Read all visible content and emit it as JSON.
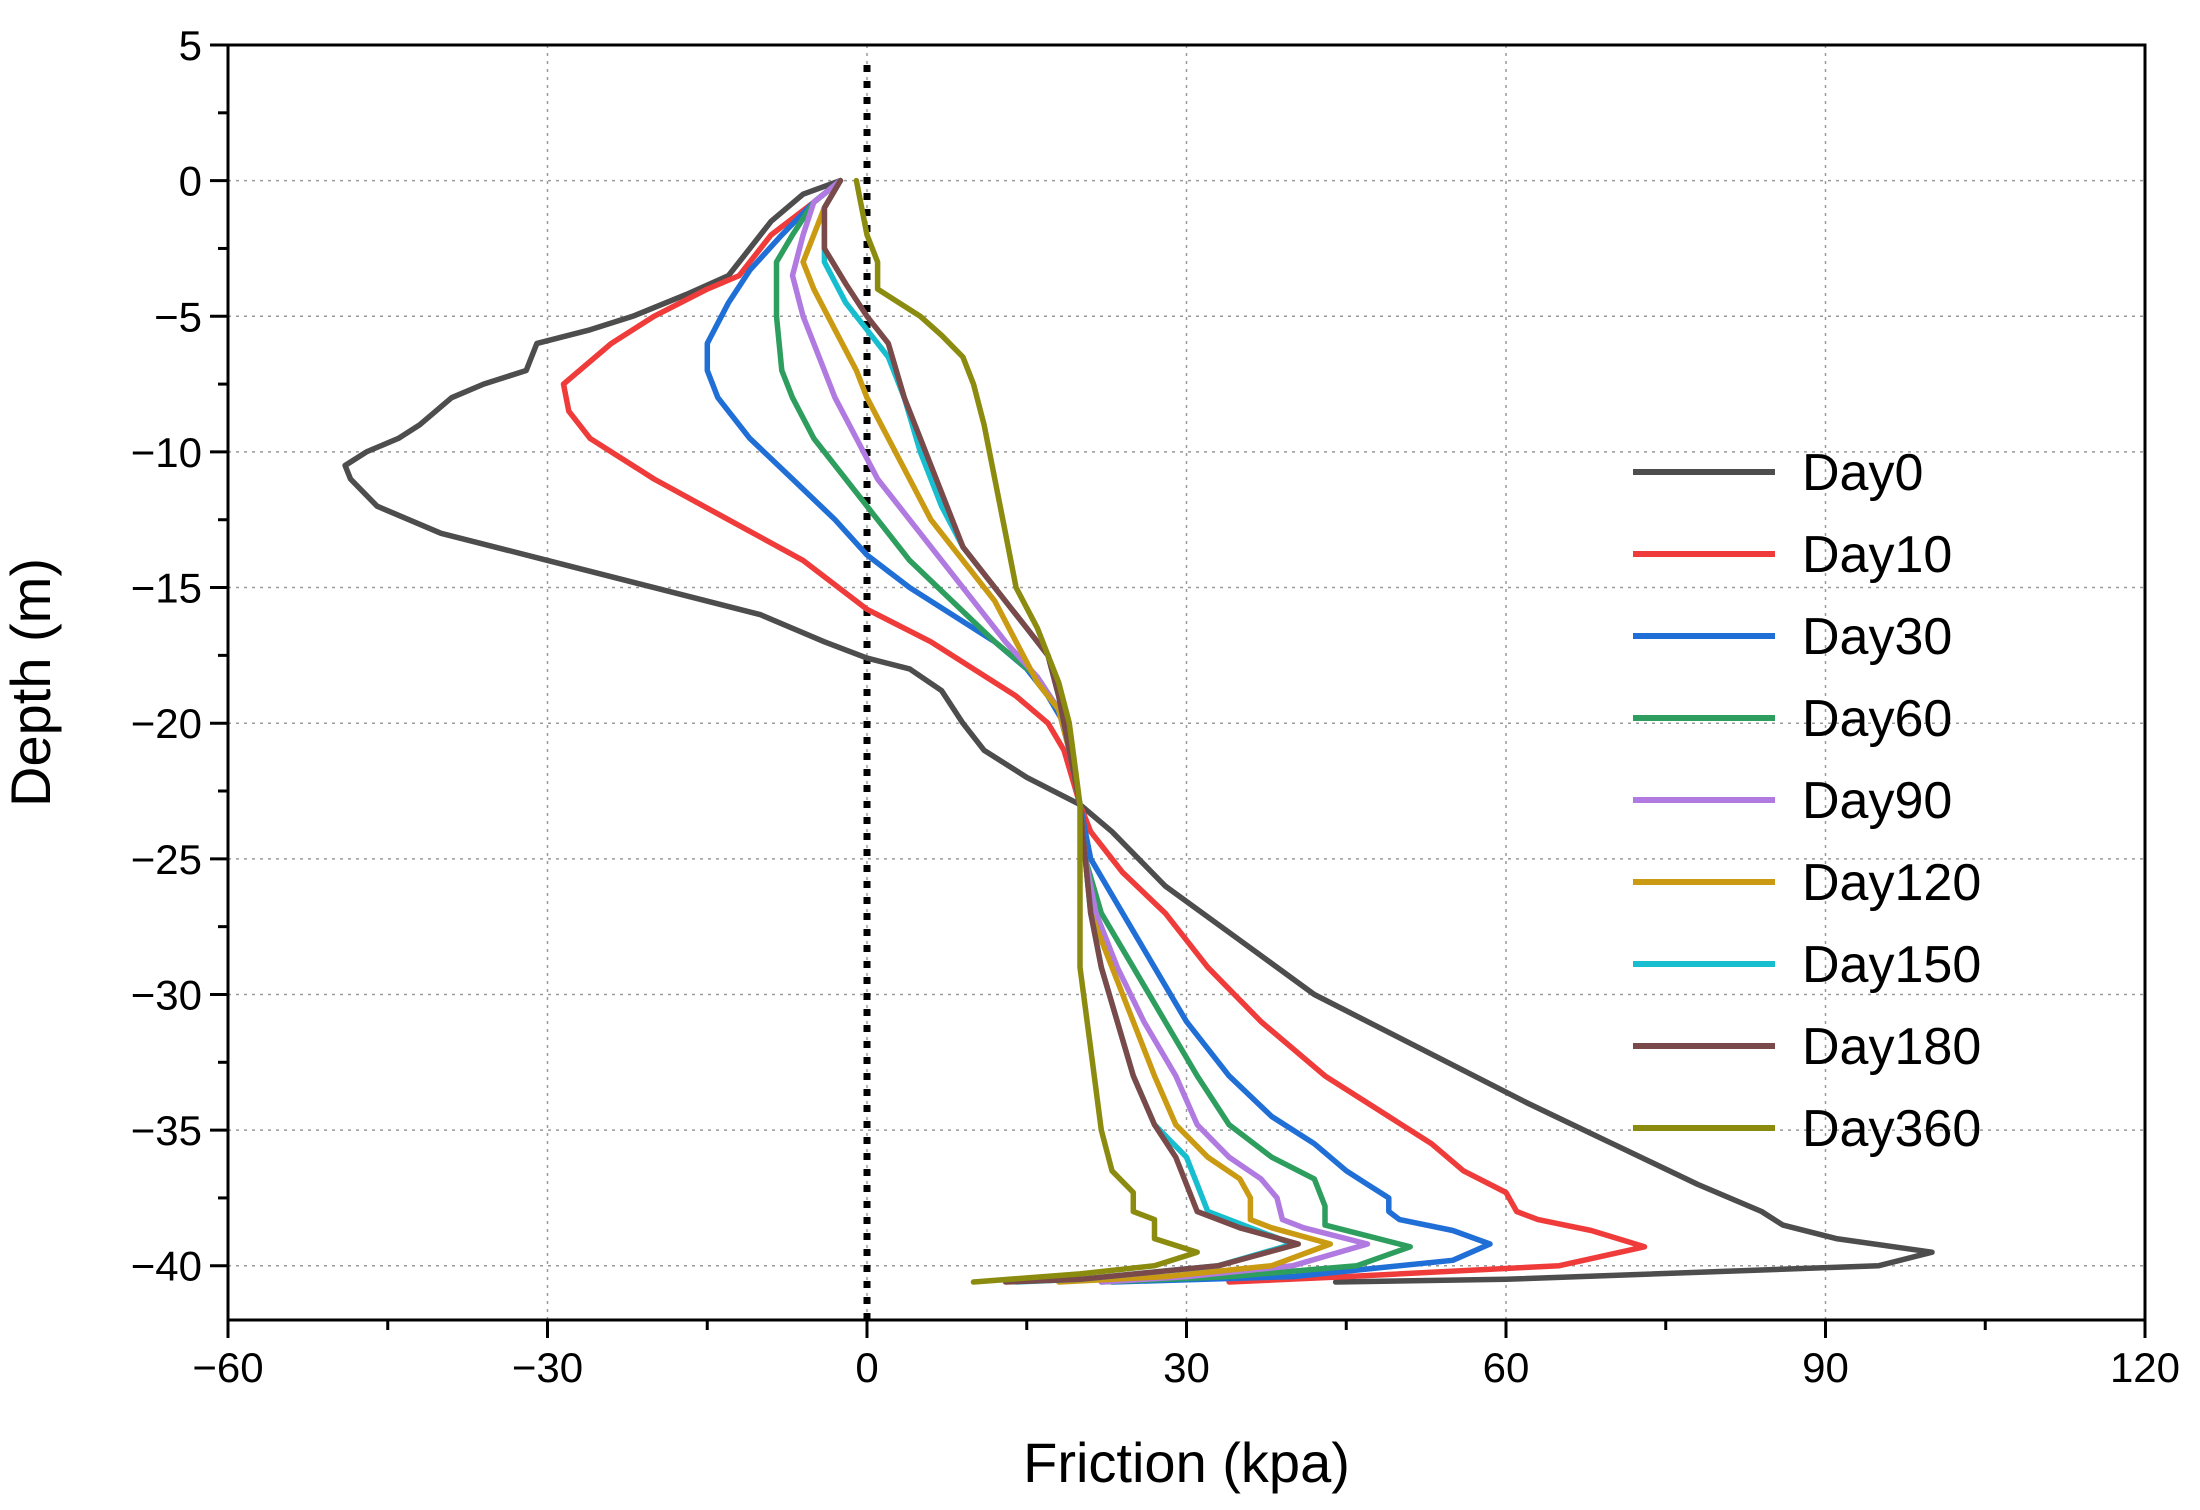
{
  "chart_data": {
    "type": "line",
    "title": "",
    "xlabel": "Friction (kpa)",
    "ylabel": "Depth (m)",
    "xlim": [
      -60,
      120
    ],
    "ylim": [
      -42,
      5
    ],
    "x_ticks": [
      -60,
      -30,
      0,
      30,
      60,
      90,
      120
    ],
    "x_tick_labels": [
      "−60",
      "−30",
      "0",
      "30",
      "60",
      "90",
      "120"
    ],
    "y_ticks": [
      5,
      0,
      -5,
      -10,
      -15,
      -20,
      -25,
      -30,
      -35,
      -40
    ],
    "y_tick_labels": [
      "5",
      "0",
      "−5",
      "−10",
      "−15",
      "−20",
      "−25",
      "−30",
      "−35",
      "−40"
    ],
    "grid": true,
    "legend_position": "right",
    "reference_line": {
      "x": 0,
      "style": "dotted"
    },
    "series": [
      {
        "name": "Day0",
        "color": "#4d4d4d",
        "points": [
          [
            -2.5,
            0
          ],
          [
            -6,
            -0.5
          ],
          [
            -9,
            -1.5
          ],
          [
            -12,
            -3
          ],
          [
            -13,
            -3.5
          ],
          [
            -17,
            -4.2
          ],
          [
            -22,
            -5
          ],
          [
            -26,
            -5.5
          ],
          [
            -31,
            -6
          ],
          [
            -32,
            -7
          ],
          [
            -36,
            -7.5
          ],
          [
            -39,
            -8
          ],
          [
            -42,
            -9
          ],
          [
            -44,
            -9.5
          ],
          [
            -47,
            -10
          ],
          [
            -49,
            -10.5
          ],
          [
            -48.5,
            -11
          ],
          [
            -46,
            -12
          ],
          [
            -40,
            -13
          ],
          [
            -30,
            -14
          ],
          [
            -20,
            -15
          ],
          [
            -10,
            -16
          ],
          [
            -4,
            -17
          ],
          [
            0,
            -17.6
          ],
          [
            4,
            -18
          ],
          [
            7,
            -18.8
          ],
          [
            9,
            -20
          ],
          [
            11,
            -21
          ],
          [
            15,
            -22
          ],
          [
            20,
            -23
          ],
          [
            23,
            -24
          ],
          [
            28,
            -26
          ],
          [
            35,
            -28
          ],
          [
            42,
            -30
          ],
          [
            52,
            -32
          ],
          [
            62,
            -34
          ],
          [
            70,
            -35.5
          ],
          [
            78,
            -37
          ],
          [
            84,
            -38
          ],
          [
            86,
            -38.5
          ],
          [
            91,
            -39
          ],
          [
            100,
            -39.5
          ],
          [
            95,
            -40
          ],
          [
            60,
            -40.5
          ],
          [
            44,
            -40.6
          ]
        ]
      },
      {
        "name": "Day10",
        "color": "#f03b3b",
        "points": [
          [
            -2.5,
            0
          ],
          [
            -5,
            -0.8
          ],
          [
            -9,
            -2
          ],
          [
            -12,
            -3.5
          ],
          [
            -15,
            -4
          ],
          [
            -20,
            -5
          ],
          [
            -24,
            -6
          ],
          [
            -27,
            -7
          ],
          [
            -28.5,
            -7.5
          ],
          [
            -28,
            -8.5
          ],
          [
            -26,
            -9.5
          ],
          [
            -20,
            -11
          ],
          [
            -13,
            -12.5
          ],
          [
            -6,
            -14
          ],
          [
            0,
            -15.8
          ],
          [
            6,
            -17
          ],
          [
            10,
            -18
          ],
          [
            14,
            -19
          ],
          [
            17,
            -20
          ],
          [
            18.5,
            -21
          ],
          [
            20,
            -23
          ],
          [
            21,
            -24
          ],
          [
            24,
            -25.5
          ],
          [
            28,
            -27
          ],
          [
            32,
            -29
          ],
          [
            37,
            -31
          ],
          [
            43,
            -33
          ],
          [
            49,
            -34.5
          ],
          [
            53,
            -35.5
          ],
          [
            56,
            -36.5
          ],
          [
            60,
            -37.3
          ],
          [
            61,
            -38
          ],
          [
            63,
            -38.3
          ],
          [
            68,
            -38.7
          ],
          [
            73,
            -39.3
          ],
          [
            65,
            -40
          ],
          [
            45,
            -40.4
          ],
          [
            34,
            -40.6
          ]
        ]
      },
      {
        "name": "Day30",
        "color": "#1f6fd6",
        "points": [
          [
            -2.5,
            0
          ],
          [
            -5,
            -0.8
          ],
          [
            -8,
            -2
          ],
          [
            -11,
            -3.3
          ],
          [
            -13,
            -4.5
          ],
          [
            -15,
            -6
          ],
          [
            -15,
            -7
          ],
          [
            -14,
            -8
          ],
          [
            -11,
            -9.5
          ],
          [
            -7,
            -11
          ],
          [
            -3,
            -12.5
          ],
          [
            0,
            -13.8
          ],
          [
            4,
            -15
          ],
          [
            8,
            -16
          ],
          [
            12,
            -17
          ],
          [
            15,
            -18
          ],
          [
            17,
            -19
          ],
          [
            18.5,
            -20
          ],
          [
            19.5,
            -22
          ],
          [
            20,
            -23
          ],
          [
            21,
            -25
          ],
          [
            24,
            -27
          ],
          [
            27,
            -29
          ],
          [
            30,
            -31
          ],
          [
            34,
            -33
          ],
          [
            38,
            -34.5
          ],
          [
            42,
            -35.5
          ],
          [
            45,
            -36.5
          ],
          [
            47,
            -37
          ],
          [
            49,
            -37.5
          ],
          [
            49,
            -38
          ],
          [
            50,
            -38.3
          ],
          [
            55,
            -38.7
          ],
          [
            58.5,
            -39.2
          ],
          [
            55,
            -39.8
          ],
          [
            40,
            -40.4
          ],
          [
            23,
            -40.6
          ]
        ]
      },
      {
        "name": "Day60",
        "color": "#2e9e5e",
        "points": [
          [
            -2.5,
            0
          ],
          [
            -5,
            -0.8
          ],
          [
            -7,
            -2
          ],
          [
            -8.5,
            -3
          ],
          [
            -8.5,
            -5
          ],
          [
            -8,
            -7
          ],
          [
            -7,
            -8
          ],
          [
            -5,
            -9.5
          ],
          [
            -2,
            -11
          ],
          [
            1,
            -12.5
          ],
          [
            4,
            -14
          ],
          [
            8,
            -15.5
          ],
          [
            12,
            -17
          ],
          [
            16,
            -18.3
          ],
          [
            18,
            -19.5
          ],
          [
            19,
            -21
          ],
          [
            20,
            -23
          ],
          [
            20.5,
            -25
          ],
          [
            22,
            -27
          ],
          [
            25,
            -29
          ],
          [
            28,
            -31
          ],
          [
            31,
            -33
          ],
          [
            34,
            -34.8
          ],
          [
            38,
            -36
          ],
          [
            42,
            -36.8
          ],
          [
            43,
            -37.8
          ],
          [
            43,
            -38.5
          ],
          [
            46,
            -38.8
          ],
          [
            51,
            -39.3
          ],
          [
            46,
            -40
          ],
          [
            34,
            -40.4
          ],
          [
            22,
            -40.6
          ]
        ]
      },
      {
        "name": "Day90",
        "color": "#b07ae0",
        "points": [
          [
            -2.5,
            0
          ],
          [
            -5,
            -0.8
          ],
          [
            -6,
            -2
          ],
          [
            -7,
            -3.5
          ],
          [
            -6,
            -5
          ],
          [
            -4.5,
            -6.5
          ],
          [
            -3,
            -8
          ],
          [
            -1,
            -9.5
          ],
          [
            1,
            -11
          ],
          [
            4,
            -12.5
          ],
          [
            7,
            -14
          ],
          [
            10,
            -15.5
          ],
          [
            13,
            -17
          ],
          [
            16,
            -18.3
          ],
          [
            18,
            -19.5
          ],
          [
            19,
            -21
          ],
          [
            20,
            -23
          ],
          [
            20.5,
            -25
          ],
          [
            21.5,
            -27
          ],
          [
            23.5,
            -29
          ],
          [
            26,
            -31
          ],
          [
            29,
            -33
          ],
          [
            31,
            -34.8
          ],
          [
            34,
            -36
          ],
          [
            37,
            -36.8
          ],
          [
            38.5,
            -37.5
          ],
          [
            39,
            -38.3
          ],
          [
            41,
            -38.6
          ],
          [
            47,
            -39.2
          ],
          [
            40,
            -40
          ],
          [
            30,
            -40.4
          ],
          [
            22,
            -40.6
          ]
        ]
      },
      {
        "name": "Day120",
        "color": "#c99a12",
        "points": [
          [
            -2.5,
            0
          ],
          [
            -4,
            -1
          ],
          [
            -5,
            -2
          ],
          [
            -6,
            -3
          ],
          [
            -5,
            -4
          ],
          [
            -3,
            -5.5
          ],
          [
            -1,
            -7
          ],
          [
            0,
            -8
          ],
          [
            2,
            -9.5
          ],
          [
            4,
            -11
          ],
          [
            6,
            -12.5
          ],
          [
            9,
            -14
          ],
          [
            12,
            -15.5
          ],
          [
            14,
            -17
          ],
          [
            16,
            -18.5
          ],
          [
            18,
            -19.5
          ],
          [
            19,
            -21
          ],
          [
            20,
            -23
          ],
          [
            20.5,
            -25
          ],
          [
            21,
            -27
          ],
          [
            23,
            -29
          ],
          [
            25,
            -31
          ],
          [
            27,
            -33
          ],
          [
            29,
            -34.8
          ],
          [
            32,
            -36
          ],
          [
            35,
            -36.8
          ],
          [
            36,
            -37.5
          ],
          [
            36,
            -38.3
          ],
          [
            38,
            -38.6
          ],
          [
            43.5,
            -39.2
          ],
          [
            38,
            -40
          ],
          [
            28,
            -40.4
          ],
          [
            18,
            -40.6
          ]
        ]
      },
      {
        "name": "Day150",
        "color": "#17becf",
        "points": [
          [
            -2.5,
            0
          ],
          [
            -4,
            -1
          ],
          [
            -4,
            -3
          ],
          [
            -2,
            -4.5
          ],
          [
            0,
            -5.5
          ],
          [
            2,
            -6.5
          ],
          [
            3.5,
            -8
          ],
          [
            5,
            -10
          ],
          [
            7,
            -12
          ],
          [
            9,
            -13.5
          ],
          [
            12,
            -15
          ],
          [
            15,
            -16.5
          ],
          [
            17,
            -17.5
          ],
          [
            18,
            -19
          ],
          [
            19,
            -21
          ],
          [
            20,
            -23
          ],
          [
            20.5,
            -25
          ],
          [
            21,
            -27
          ],
          [
            22,
            -29
          ],
          [
            23.5,
            -31
          ],
          [
            25,
            -33
          ],
          [
            27,
            -34.8
          ],
          [
            30,
            -36
          ],
          [
            31,
            -37
          ],
          [
            32,
            -38
          ],
          [
            36,
            -38.6
          ],
          [
            40,
            -39.2
          ],
          [
            33,
            -40
          ],
          [
            20,
            -40.5
          ],
          [
            14,
            -40.6
          ]
        ]
      },
      {
        "name": "Day180",
        "color": "#7a4a4a",
        "points": [
          [
            -2.5,
            0
          ],
          [
            -4,
            -1
          ],
          [
            -4,
            -2.5
          ],
          [
            -2,
            -3.8
          ],
          [
            0,
            -5
          ],
          [
            2,
            -6
          ],
          [
            3.5,
            -8
          ],
          [
            5,
            -9.5
          ],
          [
            7,
            -11.5
          ],
          [
            9,
            -13.5
          ],
          [
            12,
            -15
          ],
          [
            15,
            -16.5
          ],
          [
            17,
            -17.5
          ],
          [
            18,
            -19
          ],
          [
            19,
            -21
          ],
          [
            20,
            -23
          ],
          [
            20.5,
            -25
          ],
          [
            21,
            -27
          ],
          [
            22,
            -29
          ],
          [
            23.5,
            -31
          ],
          [
            25,
            -33
          ],
          [
            27,
            -34.8
          ],
          [
            29,
            -36
          ],
          [
            30,
            -37
          ],
          [
            31,
            -38
          ],
          [
            35,
            -38.6
          ],
          [
            40.5,
            -39.2
          ],
          [
            33,
            -40
          ],
          [
            20,
            -40.5
          ],
          [
            13,
            -40.6
          ]
        ]
      },
      {
        "name": "Day360",
        "color": "#8b8b0f",
        "points": [
          [
            -1,
            0
          ],
          [
            -0.5,
            -1
          ],
          [
            0,
            -2
          ],
          [
            1,
            -3
          ],
          [
            1,
            -4
          ],
          [
            3,
            -4.5
          ],
          [
            5,
            -5
          ],
          [
            7,
            -5.7
          ],
          [
            9,
            -6.5
          ],
          [
            10,
            -7.5
          ],
          [
            11,
            -9
          ],
          [
            12,
            -11
          ],
          [
            13,
            -13
          ],
          [
            14,
            -15
          ],
          [
            16,
            -16.5
          ],
          [
            17,
            -17.5
          ],
          [
            18,
            -18.5
          ],
          [
            19,
            -20
          ],
          [
            19.5,
            -21.5
          ],
          [
            20,
            -23
          ],
          [
            20,
            -26
          ],
          [
            20,
            -29
          ],
          [
            21,
            -32
          ],
          [
            22,
            -35
          ],
          [
            23,
            -36.5
          ],
          [
            25,
            -37.3
          ],
          [
            25,
            -38
          ],
          [
            27,
            -38.3
          ],
          [
            27,
            -39
          ],
          [
            31,
            -39.5
          ],
          [
            27,
            -40
          ],
          [
            20,
            -40.3
          ],
          [
            10,
            -40.6
          ]
        ]
      }
    ]
  }
}
